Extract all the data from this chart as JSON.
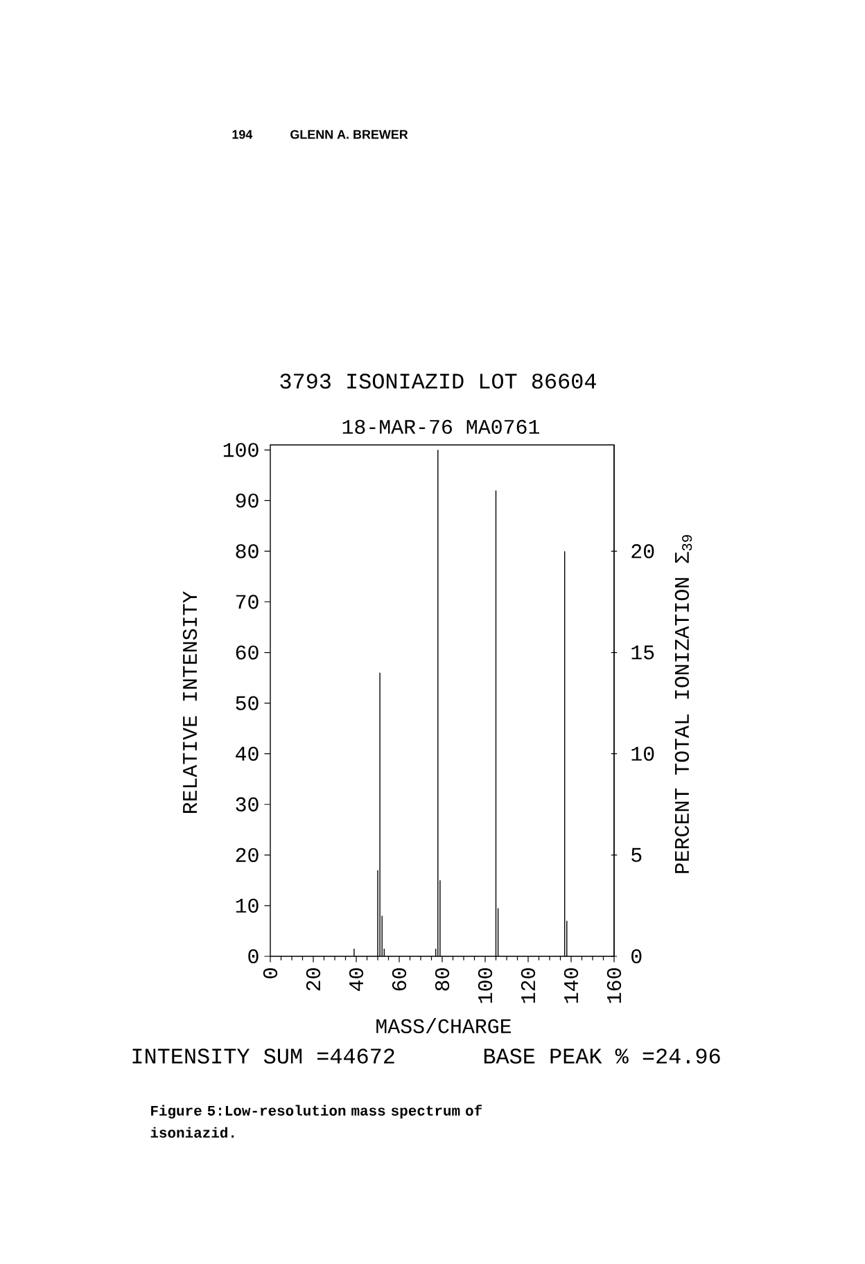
{
  "chart_data": {
    "type": "bar",
    "title": "3793 ISONIAZID LOT 86604",
    "subtitle": "18-MAR-76 MA0761",
    "xlabel": "MASS/CHARGE",
    "ylabel": "RELATIVE INTENSITY",
    "y2label": "PERCENT TOTAL IONIZATION Σ$_{39}$",
    "x": [
      39,
      50,
      51,
      52,
      53,
      77,
      78,
      79,
      105,
      106,
      137,
      138
    ],
    "values": [
      1.5,
      17,
      56,
      8,
      1.5,
      1.5,
      100,
      15,
      92,
      9.5,
      80,
      7
    ],
    "color": "#000000",
    "xlim": [
      0,
      160
    ],
    "xticks": [
      0,
      20,
      40,
      60,
      80,
      100,
      120,
      140,
      160
    ],
    "ylim": [
      0,
      101
    ],
    "yticks": [
      0,
      10,
      20,
      30,
      40,
      50,
      60,
      70,
      80,
      90,
      100
    ],
    "y2lim": [
      0,
      25.25
    ],
    "y2ticks": [
      0,
      5,
      10,
      15,
      20
    ],
    "annotations": [
      "194",
      "GLENN A. BREWER",
      "INTENSITY SUM =44672",
      "BASE PEAK % =24.96",
      "Figure 5:Low-resolution mass spectrum of isoniazid."
    ]
  }
}
